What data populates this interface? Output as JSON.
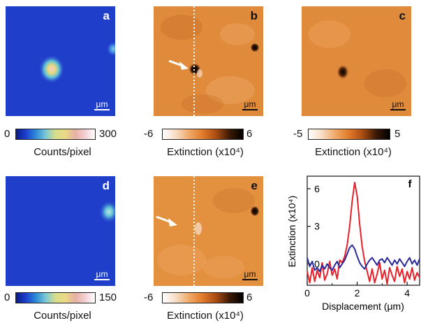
{
  "panels": {
    "a": {
      "label": "a",
      "scale_unit": "μm"
    },
    "b": {
      "label": "b",
      "scale_unit": "μm"
    },
    "c": {
      "label": "c",
      "scale_unit": "μm"
    },
    "d": {
      "label": "d",
      "scale_unit": "μm"
    },
    "e": {
      "label": "e",
      "scale_unit": "μm"
    },
    "f": {
      "label": "f"
    }
  },
  "colorbars": {
    "a": {
      "min": "0",
      "max": "300",
      "caption": "Counts/pixel"
    },
    "b": {
      "min": "-6",
      "max": "6",
      "caption": "Extinction (x10⁴)"
    },
    "c": {
      "min": "-5",
      "max": "5",
      "caption": "Extinction (x10⁴)"
    },
    "d": {
      "min": "0",
      "max": "150",
      "caption": "Counts/pixel"
    },
    "e": {
      "min": "-6",
      "max": "6",
      "caption": "Extinction (x10⁴)"
    }
  },
  "colors": {
    "jet_background": "#1f3ec9",
    "heat_background": "#e08a3c",
    "red_series": "#e8202a",
    "blue_series": "#2a2a9a"
  },
  "chart_data": {
    "type": "line",
    "panel": "f",
    "xlabel": "Displacement (μm)",
    "ylabel": "Extinction (x10⁴)",
    "xlim": [
      0,
      4.5
    ],
    "ylim": [
      -1.7,
      7
    ],
    "xticks": [
      "0",
      "2",
      "4"
    ],
    "yticks": [
      "0",
      "3",
      "6"
    ],
    "series": [
      {
        "color": "#e8202a",
        "x": [
          0,
          0.1,
          0.2,
          0.3,
          0.4,
          0.5,
          0.6,
          0.7,
          0.8,
          0.9,
          1.0,
          1.1,
          1.2,
          1.3,
          1.4,
          1.5,
          1.6,
          1.7,
          1.8,
          1.9,
          2.0,
          2.1,
          2.2,
          2.3,
          2.4,
          2.5,
          2.6,
          2.7,
          2.8,
          2.9,
          3.0,
          3.1,
          3.2,
          3.3,
          3.4,
          3.5,
          3.6,
          3.7,
          3.8,
          3.9,
          4.0,
          4.1,
          4.2,
          4.3,
          4.4,
          4.5
        ],
        "y": [
          -0.6,
          -1.5,
          -0.3,
          -1.4,
          -0.5,
          -1.1,
          0.1,
          -1.3,
          -0.8,
          0.2,
          -0.9,
          -0.4,
          -1.2,
          0.3,
          0.1,
          0.6,
          1.5,
          3.0,
          5.0,
          6.5,
          5.4,
          3.2,
          1.4,
          0.2,
          -0.6,
          -1.4,
          -0.4,
          -1.5,
          -0.8,
          0.1,
          -1.2,
          -0.5,
          -1.6,
          -0.3,
          -0.9,
          -1.4,
          -0.2,
          -1.0,
          -0.4,
          -1.5,
          -0.6,
          -1.2,
          -0.3,
          -1.3,
          -0.7,
          -1.1
        ]
      },
      {
        "color": "#2a2a9a",
        "x": [
          0,
          0.1,
          0.2,
          0.3,
          0.4,
          0.5,
          0.6,
          0.7,
          0.8,
          0.9,
          1.0,
          1.1,
          1.2,
          1.3,
          1.4,
          1.5,
          1.6,
          1.7,
          1.8,
          1.9,
          2.0,
          2.1,
          2.2,
          2.3,
          2.4,
          2.5,
          2.6,
          2.7,
          2.8,
          2.9,
          3.0,
          3.1,
          3.2,
          3.3,
          3.4,
          3.5,
          3.6,
          3.7,
          3.8,
          3.9,
          4.0,
          4.1,
          4.2,
          4.3,
          4.4,
          4.5
        ],
        "y": [
          0.5,
          -0.2,
          0.2,
          -0.5,
          -0.3,
          -0.6,
          -0.1,
          -0.4,
          0.0,
          -0.3,
          -0.5,
          -0.1,
          0.2,
          -0.3,
          0.0,
          0.3,
          0.8,
          1.3,
          1.5,
          1.2,
          0.6,
          0.1,
          -0.2,
          -0.4,
          0.0,
          0.3,
          0.5,
          0.2,
          -0.1,
          0.3,
          0.4,
          0.1,
          0.5,
          0.2,
          -0.1,
          0.3,
          0.0,
          0.4,
          0.1,
          -0.2,
          0.2,
          0.5,
          0.0,
          0.3,
          -0.1,
          0.4
        ]
      }
    ]
  }
}
